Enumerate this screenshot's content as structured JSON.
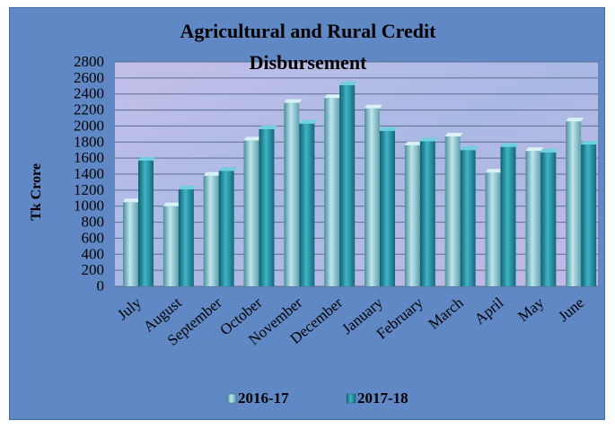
{
  "chart_data": {
    "type": "bar",
    "title_lines": [
      "Agricultural and Rural Credit",
      "Disbursement"
    ],
    "xlabel": "",
    "ylabel": "Tk Crore",
    "ylim": [
      0,
      2800
    ],
    "ytick_step": 200,
    "grid": true,
    "legend_position": "bottom",
    "categories": [
      "July",
      "August",
      "September",
      "October",
      "November",
      "December",
      "January",
      "February",
      "March",
      "April",
      "May",
      "June"
    ],
    "series": [
      {
        "name": "2016-17",
        "color": "#7fc3cf",
        "values": [
          1050,
          1000,
          1380,
          1820,
          2290,
          2350,
          2220,
          1760,
          1870,
          1420,
          1690,
          2060
        ]
      },
      {
        "name": "2017-18",
        "color": "#1f8a9e",
        "values": [
          1570,
          1210,
          1440,
          1960,
          2030,
          2510,
          1940,
          1810,
          1700,
          1740,
          1670,
          1770
        ]
      }
    ]
  },
  "colors": {
    "chart_background": "#5f88c4",
    "plot_background": "#b7b6e4",
    "gridline": "#5d6f8f"
  }
}
